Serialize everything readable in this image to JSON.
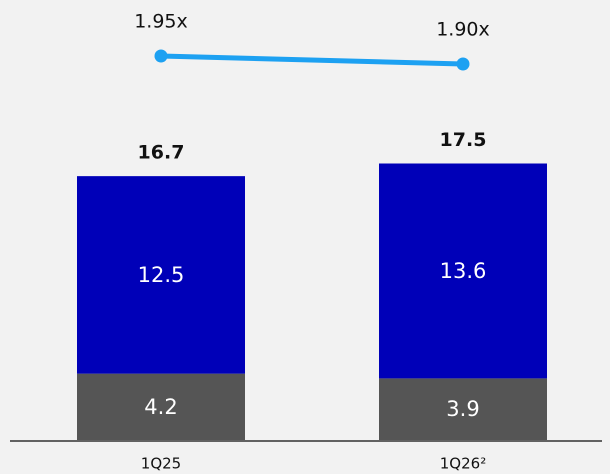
{
  "chart_data": {
    "type": "bar",
    "stacked": true,
    "categories": [
      "1Q25",
      "1Q26²"
    ],
    "series": [
      {
        "values": [
          4.2,
          3.9
        ],
        "color": "#555555"
      },
      {
        "values": [
          12.5,
          13.6
        ],
        "color": "#0000b8"
      }
    ],
    "totals": [
      "16.7",
      "17.5"
    ],
    "segment_labels": [
      [
        "4.2",
        "12.5"
      ],
      [
        "3.9",
        "13.6"
      ]
    ],
    "line_series": {
      "values": [
        1.95,
        1.9
      ],
      "labels": [
        "1.95x",
        "1.90x"
      ],
      "color": "#1da1f2"
    },
    "colors": {
      "background": "#f2f2f2",
      "axis": "#333333",
      "label_text": "#111111",
      "segment_label_text": "#ffffff"
    }
  }
}
